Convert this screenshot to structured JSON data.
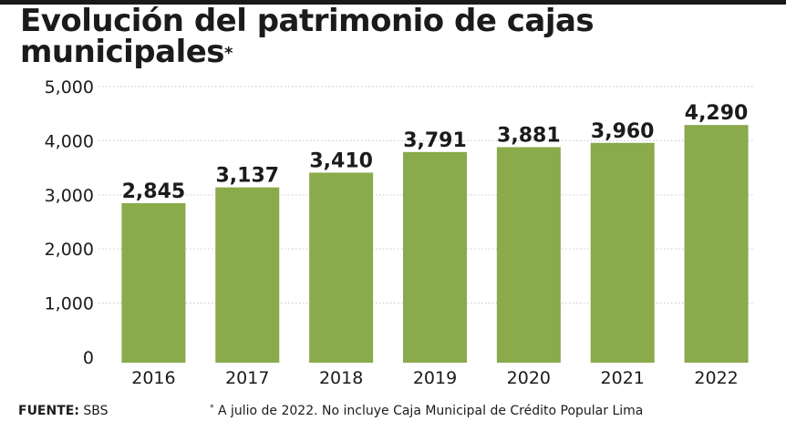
{
  "title": "Evolución del patrimonio de cajas municipales",
  "title_marker": "*",
  "source_label": "FUENTE:",
  "source_value": "SBS",
  "note_marker": "*",
  "note_text": "A julio de 2022. No incluye Caja Municipal de Crédito Popular Lima",
  "colors": {
    "bar": "#8aaa4b",
    "grid": "#cfcfcf",
    "text": "#1b1b1b"
  },
  "chart_data": {
    "type": "bar",
    "title": "Evolución del patrimonio de cajas municipales",
    "xlabel": "",
    "ylabel": "",
    "categories": [
      "2016",
      "2017",
      "2018",
      "2019",
      "2020",
      "2021",
      "2022"
    ],
    "values": [
      2845,
      3137,
      3410,
      3791,
      3881,
      3960,
      4290
    ],
    "data_labels": [
      "2,845",
      "3,137",
      "3,410",
      "3,791",
      "3,881",
      "3,960",
      "4,290"
    ],
    "y_ticks": [
      0,
      1000,
      2000,
      3000,
      4000,
      5000
    ],
    "y_tick_labels": [
      "0",
      "1,000",
      "2,000",
      "3,000",
      "4,000",
      "5,000"
    ],
    "ylim": [
      0,
      5000
    ],
    "grid": true,
    "legend": "none"
  }
}
